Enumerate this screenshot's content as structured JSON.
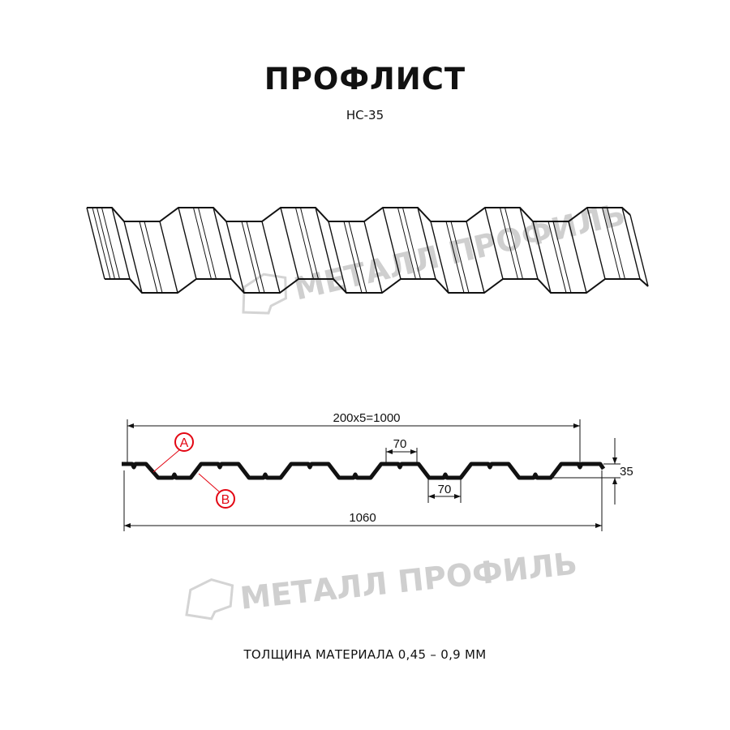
{
  "title": "ПРОФЛИСТ",
  "model": "НС-35",
  "watermark": "МЕТАЛЛ ПРОФИЛЬ",
  "dimensions": {
    "useful_width": "200x5=1000",
    "total_width": "1060",
    "top_flat": "70",
    "bottom_flat": "70",
    "height": "35"
  },
  "callouts": {
    "a": "A",
    "b": "B"
  },
  "thickness_note": "ТОЛЩИНА МАТЕРИАЛА 0,45 – 0,9 ММ",
  "colors": {
    "line": "#111111",
    "callout": "#e30613",
    "watermark": "#cfcfcf"
  }
}
